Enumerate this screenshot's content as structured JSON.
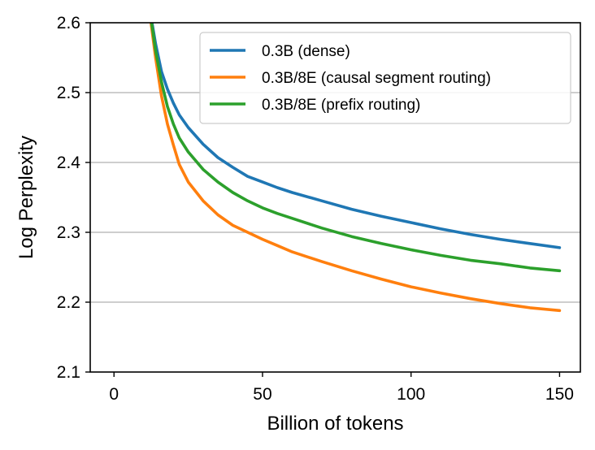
{
  "chart_data": {
    "type": "line",
    "title": "",
    "xlabel": "Billion of tokens",
    "ylabel": "Log Perplexity",
    "xlim": [
      -8,
      157
    ],
    "ylim": [
      2.1,
      2.6
    ],
    "x_ticks": [
      0,
      50,
      100,
      150
    ],
    "y_ticks": [
      2.1,
      2.2,
      2.3,
      2.4,
      2.5,
      2.6
    ],
    "x_tick_labels": [
      "0",
      "50",
      "100",
      "150"
    ],
    "y_tick_labels": [
      "2.1",
      "2.2",
      "2.3",
      "2.4",
      "2.5",
      "2.6"
    ],
    "grid": "horizontal",
    "legend_position": "top-right",
    "x": [
      12,
      14,
      16,
      18,
      20,
      22,
      25,
      30,
      35,
      40,
      45,
      50,
      55,
      60,
      70,
      80,
      90,
      100,
      110,
      120,
      130,
      140,
      150
    ],
    "series": [
      {
        "name": "0.3B (dense)",
        "color": "#1f77b4",
        "values": [
          2.62,
          2.57,
          2.53,
          2.505,
          2.485,
          2.468,
          2.45,
          2.426,
          2.407,
          2.393,
          2.38,
          2.372,
          2.364,
          2.357,
          2.345,
          2.333,
          2.323,
          2.314,
          2.305,
          2.297,
          2.29,
          2.284,
          2.278
        ]
      },
      {
        "name": "0.3B/8E (causal segment routing)",
        "color": "#ff7f0e",
        "values": [
          2.615,
          2.55,
          2.495,
          2.455,
          2.425,
          2.397,
          2.372,
          2.345,
          2.325,
          2.31,
          2.3,
          2.29,
          2.281,
          2.272,
          2.258,
          2.245,
          2.233,
          2.222,
          2.213,
          2.205,
          2.198,
          2.192,
          2.188
        ]
      },
      {
        "name": "0.3B/8E (prefix routing)",
        "color": "#2ca02c",
        "values": [
          2.62,
          2.56,
          2.515,
          2.48,
          2.455,
          2.435,
          2.415,
          2.39,
          2.372,
          2.357,
          2.345,
          2.335,
          2.327,
          2.32,
          2.306,
          2.294,
          2.284,
          2.275,
          2.267,
          2.26,
          2.255,
          2.249,
          2.245
        ]
      }
    ]
  }
}
